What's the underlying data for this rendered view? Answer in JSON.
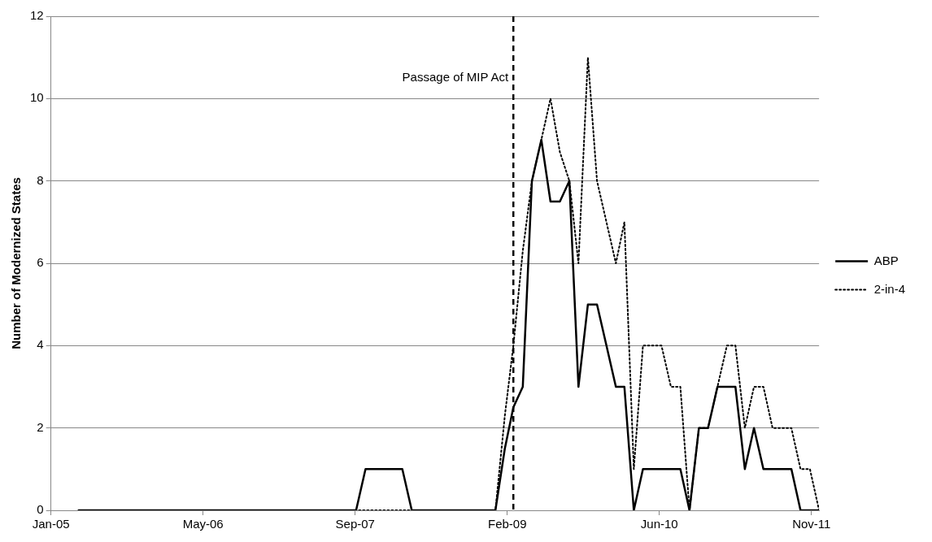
{
  "chart_data": {
    "type": "line",
    "ylabel": "Number of Modernized States",
    "x": [
      "2005-04",
      "2005-05",
      "2005-06",
      "2005-07",
      "2005-08",
      "2005-09",
      "2005-10",
      "2005-11",
      "2005-12",
      "2006-01",
      "2006-02",
      "2006-03",
      "2006-04",
      "2006-05",
      "2006-06",
      "2006-07",
      "2006-08",
      "2006-09",
      "2006-10",
      "2006-11",
      "2006-12",
      "2007-01",
      "2007-02",
      "2007-03",
      "2007-04",
      "2007-05",
      "2007-06",
      "2007-07",
      "2007-08",
      "2007-09",
      "2007-10",
      "2007-11",
      "2007-12",
      "2008-01",
      "2008-02",
      "2008-03",
      "2008-04",
      "2008-05",
      "2008-06",
      "2008-07",
      "2008-08",
      "2008-09",
      "2008-10",
      "2008-11",
      "2008-12",
      "2009-01",
      "2009-02",
      "2009-03",
      "2009-04",
      "2009-05",
      "2009-06",
      "2009-07",
      "2009-08",
      "2009-09",
      "2009-10",
      "2009-11",
      "2009-12",
      "2010-01",
      "2010-02",
      "2010-03",
      "2010-04",
      "2010-05",
      "2010-06",
      "2010-07",
      "2010-08",
      "2010-09",
      "2010-10",
      "2010-11",
      "2010-12",
      "2011-01",
      "2011-02",
      "2011-03",
      "2011-04",
      "2011-05",
      "2011-06",
      "2011-07",
      "2011-08",
      "2011-09",
      "2011-10",
      "2011-11",
      "2011-12"
    ],
    "series": [
      {
        "name": "ABP",
        "color": "#000000",
        "line_style": "solid",
        "values": [
          0,
          0,
          0,
          0,
          0,
          0,
          0,
          0,
          0,
          0,
          0,
          0,
          0,
          0,
          0,
          0,
          0,
          0,
          0,
          0,
          0,
          0,
          0,
          0,
          0,
          0,
          0,
          0,
          0,
          0,
          0,
          1,
          1,
          1,
          1,
          1,
          0,
          0,
          0,
          0,
          0,
          0,
          0,
          0,
          0,
          0,
          1.5,
          2.5,
          3,
          8,
          9,
          7.5,
          7.5,
          8,
          3,
          5,
          5,
          4,
          3,
          3,
          0,
          1,
          1,
          1,
          1,
          1,
          0,
          2,
          2,
          3,
          3,
          3,
          1,
          2,
          1,
          1,
          1,
          1,
          0,
          0,
          0
        ]
      },
      {
        "name": "2-in-4",
        "color": "#000000",
        "line_style": "dotted",
        "values": [
          0,
          0,
          0,
          0,
          0,
          0,
          0,
          0,
          0,
          0,
          0,
          0,
          0,
          0,
          0,
          0,
          0,
          0,
          0,
          0,
          0,
          0,
          0,
          0,
          0,
          0,
          0,
          0,
          0,
          0,
          0,
          0,
          0,
          0,
          0,
          0,
          0,
          0,
          0,
          0,
          0,
          0,
          0,
          0,
          0,
          0,
          2.3,
          4,
          6.3,
          8,
          9,
          10,
          8.7,
          8,
          6,
          11,
          8,
          7,
          6,
          7,
          1,
          4,
          4,
          4,
          3,
          3,
          0,
          2,
          2,
          3,
          4,
          4,
          2,
          3,
          3,
          2,
          2,
          2,
          1,
          1,
          0
        ]
      }
    ],
    "xlim": [
      "2005-01-01",
      "2011-12-01"
    ],
    "xticks": [
      {
        "value": "2005-01-01",
        "label": "Jan-05"
      },
      {
        "value": "2006-05-16",
        "label": "May-06"
      },
      {
        "value": "2007-09-28",
        "label": "Sep-07"
      },
      {
        "value": "2009-02-09",
        "label": "Feb-09"
      },
      {
        "value": "2010-06-24",
        "label": "Jun-10"
      },
      {
        "value": "2011-11-06",
        "label": "Nov-11"
      }
    ],
    "ylim": [
      0,
      12
    ],
    "yticks": [
      0,
      2,
      4,
      6,
      8,
      10,
      12
    ],
    "ref_lines": [
      {
        "axis": "x",
        "value": "2009-03-01",
        "label": "Passage of MIP Act",
        "color": "#000000",
        "line_style": "dashed"
      }
    ],
    "grid": "y",
    "legend": "right",
    "marker": "none"
  }
}
